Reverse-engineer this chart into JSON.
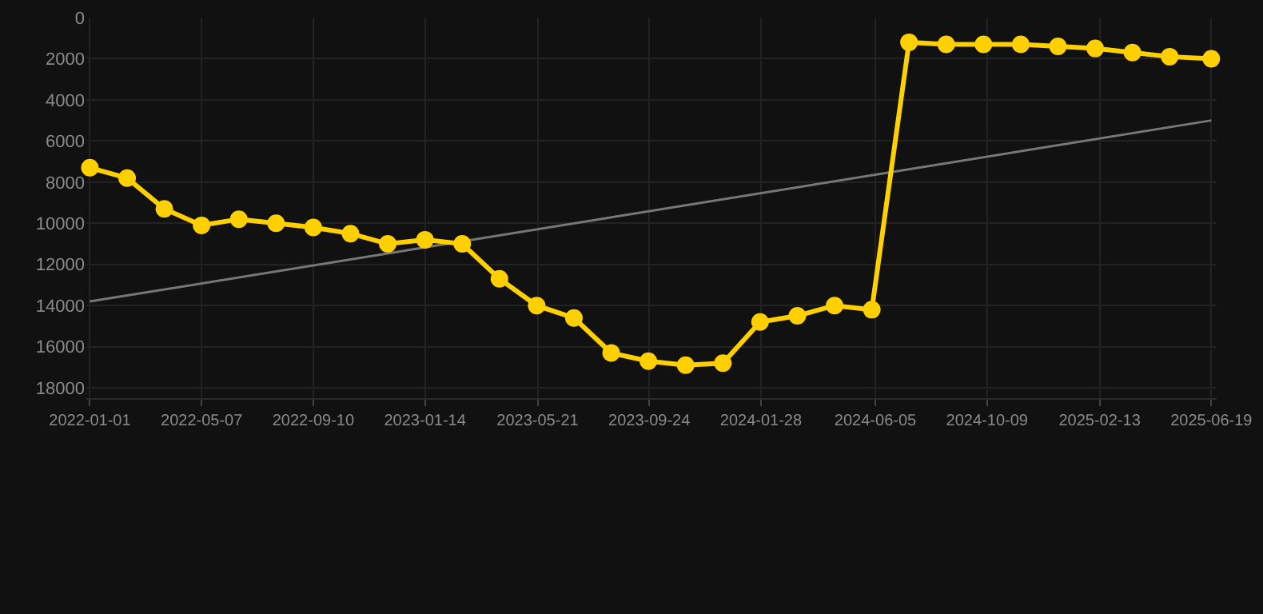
{
  "chart_data": {
    "type": "line",
    "x": [
      "2022-01-01",
      "2022-02-12",
      "2022-03-26",
      "2022-05-07",
      "2022-06-18",
      "2022-07-30",
      "2022-09-10",
      "2022-10-22",
      "2022-12-03",
      "2023-01-14",
      "2023-02-25",
      "2023-04-08",
      "2023-05-20",
      "2023-07-01",
      "2023-08-12",
      "2023-09-23",
      "2023-11-04",
      "2023-12-16",
      "2024-01-27",
      "2024-03-09",
      "2024-04-20",
      "2024-06-01",
      "2024-07-13",
      "2024-08-24",
      "2024-10-05",
      "2024-11-16",
      "2024-12-28",
      "2025-02-08",
      "2025-03-22",
      "2025-05-03",
      "2025-06-19"
    ],
    "series": [
      {
        "color": "#ffd000",
        "values": [
          7300,
          7800,
          9300,
          10100,
          9800,
          10000,
          10200,
          10500,
          11000,
          10800,
          11000,
          12700,
          14000,
          14600,
          16300,
          16700,
          16900,
          16800,
          14800,
          14500,
          14000,
          14200,
          1200,
          1300,
          1300,
          1300,
          1400,
          1500,
          1700,
          1900,
          2000
        ]
      },
      {
        "type": "line",
        "marker": "none",
        "color": "#777777",
        "x": [
          "2022-01-01",
          "2025-06-19"
        ],
        "values": [
          13800,
          5000
        ]
      }
    ],
    "marker": "circle",
    "line_style": "solid",
    "grid": true,
    "xlim": [
      "2021-12-28",
      "2025-06-25"
    ],
    "ylim": [
      18500,
      0
    ],
    "xticks": [
      {
        "value": "2022-01-01",
        "label": "2022-01-01"
      },
      {
        "value": "2022-05-07",
        "label": "2022-05-07"
      },
      {
        "value": "2022-09-10",
        "label": "2022-09-10"
      },
      {
        "value": "2023-01-14",
        "label": "2023-01-14"
      },
      {
        "value": "2023-05-21",
        "label": "2023-05-21"
      },
      {
        "value": "2023-09-24",
        "label": "2023-09-24"
      },
      {
        "value": "2024-01-28",
        "label": "2024-01-28"
      },
      {
        "value": "2024-06-05",
        "label": "2024-06-05"
      },
      {
        "value": "2024-10-09",
        "label": "2024-10-09"
      },
      {
        "value": "2025-02-13",
        "label": "2025-02-13"
      },
      {
        "value": "2025-06-19",
        "label": "2025-06-19"
      }
    ],
    "yticks": [
      0,
      2000,
      4000,
      6000,
      8000,
      10000,
      12000,
      14000,
      16000,
      18000
    ]
  }
}
